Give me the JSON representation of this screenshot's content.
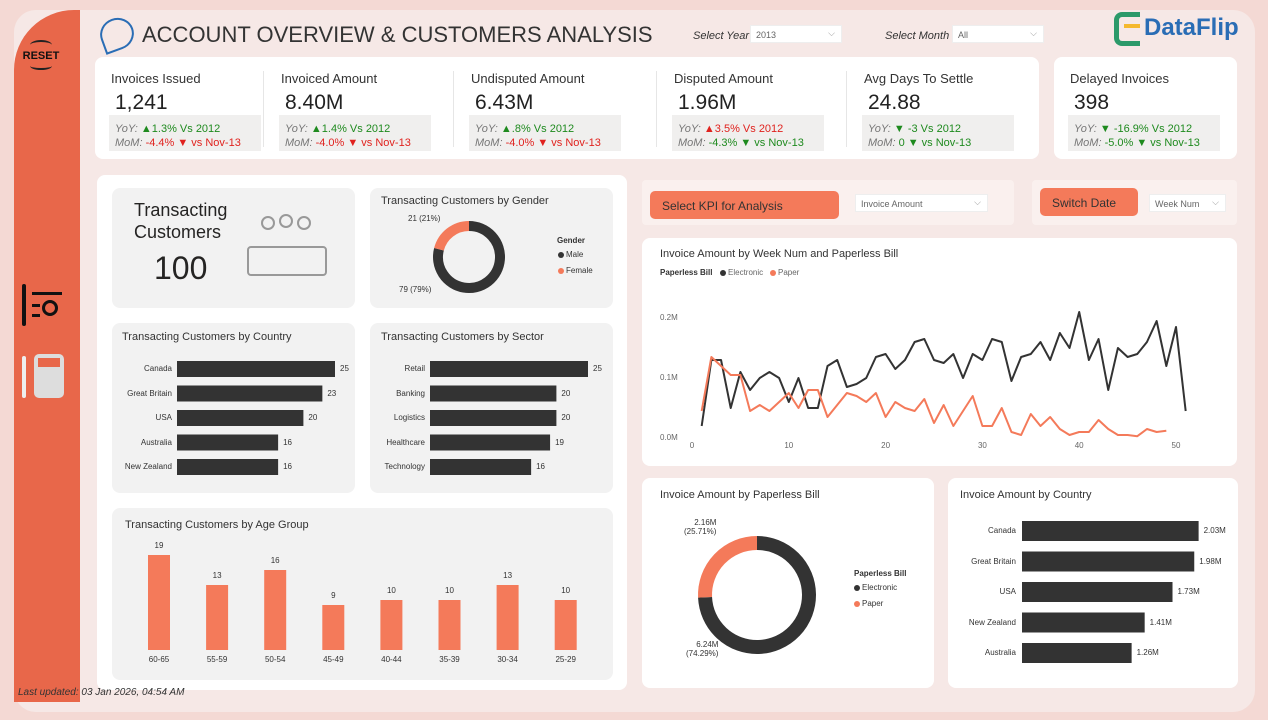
{
  "header": {
    "title": "ACCOUNT OVERVIEW & CUSTOMERS ANALYSIS",
    "year_label": "Select Year",
    "year_value": "2013",
    "month_label": "Select Month",
    "month_value": "All",
    "brand": "DataFlip"
  },
  "sidebar": {
    "reset": "RESET",
    "icons": [
      "reset-icon",
      "report-search-icon",
      "calculator-icon"
    ]
  },
  "kpis": [
    {
      "title": "Invoices Issued",
      "value": "1,241",
      "yoy": "▲1.3% Vs 2012",
      "yoy_color": "#1e8a1e",
      "mom": "-4.4% ▼ vs Nov-13",
      "mom_color": "#e0221e"
    },
    {
      "title": "Invoiced Amount",
      "value": "8.40M",
      "yoy": "▲1.4% Vs 2012",
      "yoy_color": "#1e8a1e",
      "mom": "-4.0% ▼ vs Nov-13",
      "mom_color": "#e0221e"
    },
    {
      "title": "Undisputed Amount",
      "value": "6.43M",
      "yoy": "▲.8% Vs 2012",
      "yoy_color": "#1e8a1e",
      "mom": "-4.0% ▼ vs Nov-13",
      "mom_color": "#e0221e"
    },
    {
      "title": "Disputed Amount",
      "value": "1.96M",
      "yoy": "▲3.5% Vs 2012",
      "yoy_color": "#e0221e",
      "mom": "-4.3% ▼ vs Nov-13",
      "mom_color": "#1e8a1e"
    },
    {
      "title": "Avg Days To Settle",
      "value": "24.88",
      "yoy": "▼ -3 Vs 2012",
      "yoy_color": "#1e8a1e",
      "mom": "0 ▼ vs Nov-13",
      "mom_color": "#1e8a1e"
    },
    {
      "title": "Delayed Invoices",
      "value": "398",
      "yoy": "▼ -16.9% Vs 2012",
      "yoy_color": "#1e8a1e",
      "mom": "-5.0% ▼ vs Nov-13",
      "mom_color": "#1e8a1e"
    }
  ],
  "yoy_prefix": "YoY:",
  "mom_prefix": "MoM:",
  "transacting": {
    "label1": "Transacting",
    "label2": "Customers",
    "value": "100"
  },
  "controls": {
    "kpi_button": "Select KPI for Analysis",
    "kpi_value": "Invoice Amount",
    "date_button": "Switch Date",
    "date_value": "Week Num"
  },
  "footer": {
    "last_updated": "Last updated: 03 Jan 2026, 04:54 AM"
  },
  "colors": {
    "accent": "#f47a5a",
    "dark": "#333333",
    "sidebar": "#e8674a"
  },
  "chart_data": [
    {
      "type": "pie",
      "title": "Transacting Customers by Gender",
      "legend_title": "Gender",
      "categories": [
        "Male",
        "Female"
      ],
      "values": [
        79,
        21
      ],
      "labels": [
        "79 (79%)",
        "21 (21%)"
      ],
      "colors": [
        "#333333",
        "#f47a5a"
      ]
    },
    {
      "type": "bar",
      "orientation": "horizontal",
      "title": "Transacting Customers by Country",
      "categories": [
        "Canada",
        "Great Britain",
        "USA",
        "Australia",
        "New Zealand"
      ],
      "values": [
        25,
        23,
        20,
        16,
        16
      ]
    },
    {
      "type": "bar",
      "orientation": "horizontal",
      "title": "Transacting Customers by Sector",
      "categories": [
        "Retail",
        "Banking",
        "Logistics",
        "Healthcare",
        "Technology"
      ],
      "values": [
        25,
        20,
        20,
        19,
        16
      ]
    },
    {
      "type": "bar",
      "title": "Transacting Customers by Age Group",
      "categories": [
        "60-65",
        "55-59",
        "50-54",
        "45-49",
        "40-44",
        "35-39",
        "30-34",
        "25-29"
      ],
      "values": [
        19,
        13,
        16,
        9,
        10,
        10,
        13,
        10
      ]
    },
    {
      "type": "line",
      "title": "Invoice Amount by Week Num and Paperless Bill",
      "legend_title": "Paperless Bill",
      "xlim": [
        0,
        51
      ],
      "ylim": [
        0,
        0.22
      ],
      "xticks": [
        0,
        10,
        20,
        30,
        40,
        50
      ],
      "yticks": [
        "0.0M",
        "0.1M",
        "0.2M"
      ],
      "series": [
        {
          "name": "Electronic",
          "color": "#333333",
          "x_start": 1,
          "values": [
            0.02,
            0.13,
            0.13,
            0.05,
            0.11,
            0.08,
            0.1,
            0.11,
            0.1,
            0.06,
            0.1,
            0.05,
            0.05,
            0.12,
            0.13,
            0.085,
            0.09,
            0.1,
            0.135,
            0.14,
            0.115,
            0.13,
            0.16,
            0.165,
            0.13,
            0.125,
            0.14,
            0.1,
            0.14,
            0.13,
            0.165,
            0.16,
            0.095,
            0.135,
            0.14,
            0.16,
            0.13,
            0.175,
            0.15,
            0.21,
            0.13,
            0.165,
            0.08,
            0.15,
            0.135,
            0.14,
            0.16,
            0.195,
            0.12,
            0.185,
            0.045
          ]
        },
        {
          "name": "Paper",
          "color": "#f47a5a",
          "x_start": 1,
          "values": [
            0.045,
            0.135,
            0.12,
            0.105,
            0.105,
            0.045,
            0.055,
            0.045,
            0.06,
            0.075,
            0.05,
            0.08,
            0.08,
            0.035,
            0.055,
            0.075,
            0.07,
            0.06,
            0.075,
            0.035,
            0.06,
            0.05,
            0.045,
            0.065,
            0.025,
            0.055,
            0.02,
            0.045,
            0.07,
            0.02,
            0.02,
            0.05,
            0.01,
            0.005,
            0.04,
            0.02,
            0.035,
            0.015,
            0.005,
            0.01,
            0.01,
            0.03,
            0.015,
            0.005,
            0.005,
            0.003,
            0.015,
            0.01,
            0.012
          ]
        }
      ]
    },
    {
      "type": "pie",
      "title": "Invoice Amount by Paperless Bill",
      "legend_title": "Paperless Bill",
      "categories": [
        "Electronic",
        "Paper"
      ],
      "values": [
        6.24,
        2.16
      ],
      "labels": [
        "6.24M\n(74.29%)",
        "2.16M\n(25.71%)"
      ],
      "colors": [
        "#333333",
        "#f47a5a"
      ]
    },
    {
      "type": "bar",
      "orientation": "horizontal",
      "title": "Invoice Amount by Country",
      "categories": [
        "Canada",
        "Great Britain",
        "USA",
        "New Zealand",
        "Australia"
      ],
      "values": [
        2.03,
        1.98,
        1.73,
        1.41,
        1.26
      ],
      "labels": [
        "2.03M",
        "1.98M",
        "1.73M",
        "1.41M",
        "1.26M"
      ]
    }
  ]
}
